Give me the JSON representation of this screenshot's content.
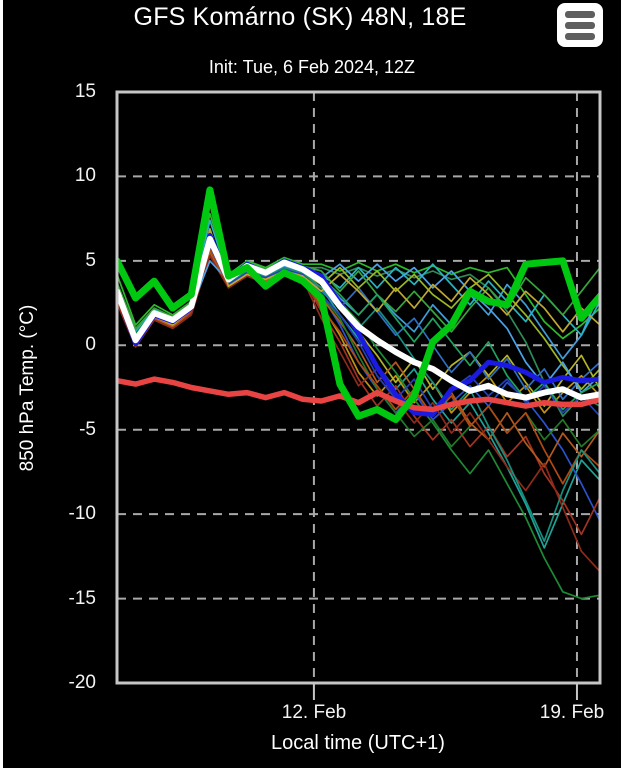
{
  "header": {
    "title": "GFS Komárno (SK) 48N, 18E",
    "subtitle": "Init: Tue, 6 Feb 2024, 12Z",
    "menu_icon": "hamburger-icon"
  },
  "chart_data": {
    "type": "line",
    "title": "GFS Komárno (SK) 48N, 18E",
    "subtitle": "Init: Tue, 6 Feb 2024, 12Z",
    "xlabel": "Local time (UTC+1)",
    "ylabel": "850 hPa Temp. (°C)",
    "ylim": [
      -20,
      15
    ],
    "yticks": [
      15,
      10,
      5,
      0,
      -5,
      -10,
      -15,
      -20
    ],
    "xticks": [
      {
        "label": "12. Feb",
        "pos": 10.6
      },
      {
        "label": "19. Feb",
        "pos": 24.76
      }
    ],
    "samples": 27,
    "sample_step_days": 0.5,
    "grid_on": true,
    "background": "#000000",
    "grid_color": "#a8a8a8",
    "axis_color": "#c6c6c6",
    "text_color": "#ffffff",
    "members": [
      {
        "color": "#2db92d",
        "values": [
          4.2,
          1.2,
          2.4,
          1.8,
          2.6,
          7.8,
          4.2,
          5.0,
          4.6,
          5.2,
          4.8,
          4.8,
          4.4,
          4.9,
          4.4,
          4.8,
          4.3,
          4.7,
          4.2,
          4.6,
          4.3,
          4.6,
          3.0,
          1.4,
          0.4,
          1.2,
          2.2
        ]
      },
      {
        "color": "#1fa396",
        "values": [
          3.4,
          0.6,
          2.1,
          1.4,
          2.4,
          6.0,
          3.7,
          4.4,
          4.0,
          4.6,
          4.3,
          3.4,
          1.8,
          0.4,
          -1.2,
          -2.6,
          -1.4,
          -3.2,
          -4.6,
          -3.4,
          -5.2,
          -7.2,
          -9.4,
          -12.0,
          -9.4,
          -6.8,
          -8.0
        ]
      },
      {
        "color": "#bf9412",
        "values": [
          2.8,
          0.2,
          1.7,
          1.2,
          2.0,
          5.6,
          3.6,
          4.3,
          3.9,
          4.4,
          4.1,
          2.4,
          0.6,
          -1.6,
          -3.0,
          -1.8,
          -3.4,
          -2.2,
          -4.0,
          -2.8,
          -1.8,
          -3.4,
          -2.4,
          -4.0,
          -2.8,
          -1.8,
          -3.0
        ]
      },
      {
        "color": "#2a52cc",
        "values": [
          3.1,
          0.4,
          1.8,
          1.3,
          2.2,
          6.6,
          3.8,
          4.5,
          4.1,
          4.7,
          4.4,
          3.0,
          1.2,
          -1.0,
          -2.6,
          -4.0,
          -2.8,
          -4.4,
          -3.4,
          -2.4,
          -3.6,
          -2.2,
          -3.2,
          -4.6,
          -6.2,
          -8.2,
          -10.4
        ]
      },
      {
        "color": "#a33321",
        "values": [
          2.6,
          0.0,
          1.5,
          1.0,
          1.9,
          8.4,
          3.5,
          4.2,
          3.8,
          4.3,
          4.0,
          2.0,
          0.2,
          -2.0,
          -3.6,
          -2.4,
          -4.2,
          -5.6,
          -4.4,
          -6.0,
          -4.8,
          -6.6,
          -5.4,
          -7.6,
          -9.2,
          -11.2,
          -9.0
        ]
      },
      {
        "color": "#2e8b57",
        "values": [
          3.6,
          0.9,
          2.2,
          1.6,
          2.5,
          6.8,
          4.0,
          4.8,
          4.4,
          5.0,
          4.6,
          4.6,
          4.2,
          4.6,
          4.1,
          4.5,
          4.0,
          4.4,
          3.9,
          4.2,
          3.4,
          2.0,
          0.2,
          -2.2,
          -4.2,
          -3.0,
          -3.6
        ]
      },
      {
        "color": "#3f9fd9",
        "values": [
          3.0,
          0.5,
          1.9,
          1.4,
          2.3,
          6.2,
          3.8,
          4.6,
          4.2,
          4.8,
          4.5,
          4.0,
          2.8,
          1.8,
          3.0,
          1.8,
          0.8,
          2.4,
          1.2,
          3.0,
          1.8,
          3.6,
          2.4,
          0.8,
          -0.8,
          0.6,
          3.2
        ]
      },
      {
        "color": "#b5b529",
        "values": [
          2.9,
          0.3,
          1.8,
          1.2,
          2.1,
          5.8,
          3.6,
          4.3,
          4.0,
          4.5,
          4.2,
          3.4,
          2.4,
          0.8,
          -0.6,
          -2.2,
          -0.8,
          -2.6,
          -1.2,
          -0.4,
          -1.8,
          -0.6,
          -2.2,
          -3.6,
          -2.0,
          -0.6,
          -2.6
        ]
      },
      {
        "color": "#b35a1f",
        "values": [
          2.7,
          0.1,
          1.6,
          1.1,
          2.0,
          5.5,
          3.5,
          4.2,
          3.8,
          4.4,
          4.1,
          2.8,
          1.4,
          -0.2,
          -2.2,
          -1.0,
          -2.6,
          -4.2,
          -2.8,
          -4.6,
          -5.6,
          -4.0,
          -5.8,
          -7.2,
          -5.2,
          -6.6,
          -5.0
        ]
      },
      {
        "color": "#1d8a34",
        "values": [
          3.3,
          0.7,
          2.0,
          1.5,
          2.4,
          6.4,
          3.9,
          4.6,
          4.3,
          4.9,
          4.5,
          3.8,
          2.6,
          1.4,
          -0.2,
          -1.6,
          -3.2,
          -4.6,
          -6.2,
          -7.6,
          -6.2,
          -8.2,
          -10.2,
          -12.6,
          -14.6,
          -15.0,
          -14.8
        ]
      },
      {
        "color": "#2f6fc4",
        "values": [
          3.2,
          0.6,
          1.9,
          1.4,
          2.3,
          6.1,
          3.7,
          4.5,
          4.1,
          4.7,
          4.3,
          3.2,
          2.2,
          3.4,
          2.0,
          0.6,
          1.6,
          0.0,
          -1.6,
          -0.4,
          -2.0,
          -0.8,
          -2.6,
          -1.4,
          -3.2,
          -2.0,
          -1.0
        ]
      },
      {
        "color": "#27b3c0",
        "values": [
          3.5,
          0.8,
          2.1,
          1.6,
          2.5,
          7.4,
          4.0,
          4.7,
          4.3,
          4.9,
          4.6,
          4.2,
          3.4,
          4.6,
          3.4,
          4.6,
          3.6,
          4.8,
          3.6,
          2.4,
          3.8,
          2.6,
          1.4,
          3.0,
          1.8,
          0.6,
          2.6
        ]
      },
      {
        "color": "#8f2a1a",
        "values": [
          2.5,
          -0.1,
          1.5,
          1.0,
          1.8,
          5.3,
          3.4,
          4.1,
          3.7,
          4.2,
          3.9,
          1.6,
          -0.4,
          -2.4,
          -1.4,
          -3.2,
          -4.6,
          -3.4,
          -5.2,
          -4.0,
          -5.6,
          -7.2,
          -8.6,
          -7.0,
          -9.6,
          -12.2,
          -13.4
        ]
      },
      {
        "color": "#9ab824",
        "values": [
          3.0,
          0.4,
          1.8,
          1.3,
          2.2,
          6.0,
          3.7,
          4.4,
          4.0,
          4.6,
          4.3,
          3.6,
          4.6,
          3.4,
          4.4,
          3.2,
          4.2,
          3.0,
          2.2,
          3.4,
          4.2,
          3.0,
          1.8,
          0.4,
          -1.2,
          -2.6,
          -1.4
        ]
      },
      {
        "color": "#237a28",
        "values": [
          3.4,
          0.7,
          2.0,
          1.5,
          2.4,
          6.3,
          3.8,
          4.6,
          4.2,
          4.8,
          4.4,
          3.0,
          1.6,
          -0.6,
          -2.6,
          -4.0,
          -5.4,
          -4.4,
          -6.0,
          -4.8,
          -3.6,
          -5.2,
          -4.0,
          -5.6,
          -4.4,
          -6.0,
          -5.0
        ]
      },
      {
        "color": "#4aa3e8",
        "values": [
          3.1,
          0.5,
          1.9,
          1.4,
          2.2,
          5.0,
          3.8,
          4.5,
          4.1,
          4.7,
          4.4,
          4.0,
          4.8,
          3.8,
          4.8,
          3.8,
          4.6,
          3.4,
          4.4,
          3.2,
          2.2,
          1.0,
          -1.0,
          -2.4,
          -1.0,
          -2.8,
          -1.8
        ]
      },
      {
        "color": "#b04a12",
        "values": [
          2.8,
          0.2,
          1.7,
          1.2,
          2.0,
          5.7,
          3.5,
          4.3,
          3.9,
          4.4,
          4.1,
          2.2,
          0.8,
          -1.0,
          -2.4,
          -3.8,
          -2.6,
          -4.2,
          -3.0,
          -4.8,
          -3.6,
          -5.2,
          -4.0,
          -6.2,
          -8.2,
          -6.2,
          -7.2
        ]
      },
      {
        "color": "#178f7f",
        "values": [
          3.2,
          0.6,
          2.0,
          1.5,
          2.3,
          6.1,
          3.7,
          4.4,
          4.1,
          4.6,
          4.3,
          3.4,
          2.2,
          1.0,
          2.2,
          0.8,
          -0.8,
          -2.2,
          -3.8,
          -2.6,
          -4.8,
          -6.8,
          -9.2,
          -11.6,
          -8.6,
          -6.2,
          -7.6
        ]
      },
      {
        "color": "#37a53c",
        "values": [
          3.7,
          1.0,
          2.2,
          1.7,
          2.6,
          9.3,
          4.1,
          4.9,
          4.5,
          5.1,
          4.7,
          4.4,
          3.2,
          4.4,
          3.0,
          2.0,
          3.2,
          2.0,
          0.8,
          2.2,
          3.4,
          2.2,
          4.0,
          3.0,
          1.8,
          3.2,
          4.6
        ]
      },
      {
        "color": "#2441b8",
        "values": [
          3.0,
          0.4,
          1.8,
          1.3,
          2.1,
          5.9,
          3.6,
          4.3,
          4.0,
          4.5,
          4.2,
          3.0,
          1.8,
          0.2,
          -1.8,
          -3.2,
          -2.0,
          -3.8,
          -2.6,
          -1.8,
          -3.0,
          -2.0,
          -3.4,
          -2.4,
          -4.0,
          -3.0,
          -4.2
        ]
      },
      {
        "color": "#bfa832",
        "values": [
          2.9,
          0.3,
          1.7,
          1.2,
          2.1,
          6.9,
          3.5,
          4.2,
          3.9,
          4.4,
          4.1,
          3.2,
          4.2,
          3.2,
          2.0,
          3.4,
          2.2,
          3.6,
          2.6,
          4.0,
          3.0,
          1.8,
          3.2,
          2.2,
          0.8,
          2.2,
          1.2
        ]
      },
      {
        "color": "#1fa35f",
        "values": [
          3.3,
          0.6,
          2.0,
          1.5,
          2.4,
          6.2,
          3.8,
          4.5,
          4.2,
          4.8,
          4.4,
          4.0,
          3.0,
          1.8,
          3.0,
          1.6,
          0.2,
          1.6,
          0.2,
          -1.2,
          0.2,
          -1.8,
          -3.2,
          -2.2,
          -3.8,
          -2.8,
          -2.2
        ]
      }
    ],
    "thick_lines": [
      {
        "id": "control-blue",
        "color": "#1a1ae0",
        "width": 5,
        "values": [
          3.2,
          0.1,
          1.8,
          1.4,
          2.2,
          6.5,
          3.9,
          4.8,
          4.3,
          5.0,
          4.6,
          4.1,
          2.5,
          0.7,
          -1.3,
          -2.9,
          -4.0,
          -4.1,
          -2.6,
          -2.1,
          -1.0,
          -1.2,
          -1.6,
          -2.2,
          -1.9,
          -2.1,
          -2.0
        ]
      },
      {
        "id": "climate-red",
        "color": "#e84444",
        "width": 5.5,
        "values": [
          -2.1,
          -2.3,
          -2.0,
          -2.2,
          -2.5,
          -2.7,
          -2.9,
          -2.8,
          -3.1,
          -2.8,
          -3.2,
          -3.3,
          -3.0,
          -3.4,
          -2.8,
          -3.3,
          -3.7,
          -3.8,
          -3.5,
          -3.3,
          -3.2,
          -3.4,
          -3.6,
          -3.4,
          -3.5,
          -3.5,
          -3.2
        ]
      },
      {
        "id": "ensemble-mean-white",
        "color": "#ffffff",
        "width": 6,
        "values": [
          3.2,
          0.3,
          1.9,
          1.5,
          2.3,
          6.3,
          3.9,
          4.7,
          4.3,
          4.9,
          4.5,
          3.8,
          2.3,
          1.1,
          0.3,
          -0.4,
          -1.0,
          -1.4,
          -2.1,
          -2.7,
          -2.4,
          -2.9,
          -3.1,
          -2.8,
          -2.6,
          -3.1,
          -2.9
        ]
      },
      {
        "id": "operational-green",
        "color": "#00c811",
        "width": 7,
        "values": [
          5.0,
          2.8,
          3.8,
          2.2,
          3.0,
          9.2,
          4.1,
          4.6,
          3.5,
          4.3,
          3.8,
          2.8,
          -2.3,
          -4.2,
          -3.8,
          -4.4,
          -3.0,
          0.2,
          1.2,
          3.2,
          2.6,
          2.4,
          4.8,
          4.9,
          5.0,
          1.6,
          2.9
        ]
      }
    ]
  }
}
